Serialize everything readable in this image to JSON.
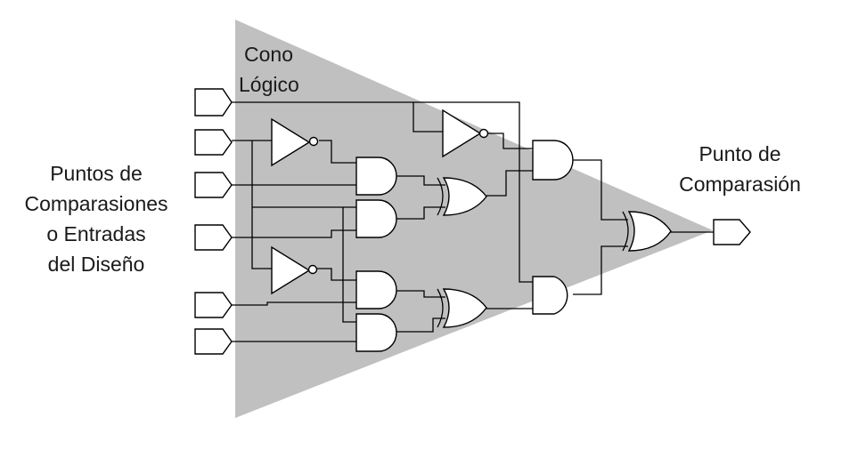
{
  "labels": {
    "inputs": [
      "Puntos de",
      "Comparasiones",
      "o Entradas",
      "del Diseño"
    ],
    "cone": [
      "Cono",
      "Lógico"
    ],
    "output": [
      "Punto de",
      "Comparasión"
    ]
  },
  "colors": {
    "cone": "#c0c0c0",
    "line": "#000000",
    "gate_fill": "#ffffff"
  },
  "components": {
    "input_ports": 6,
    "not_gates": 3,
    "and_gates": 6,
    "or_gates": 3,
    "output_ports": 1
  }
}
